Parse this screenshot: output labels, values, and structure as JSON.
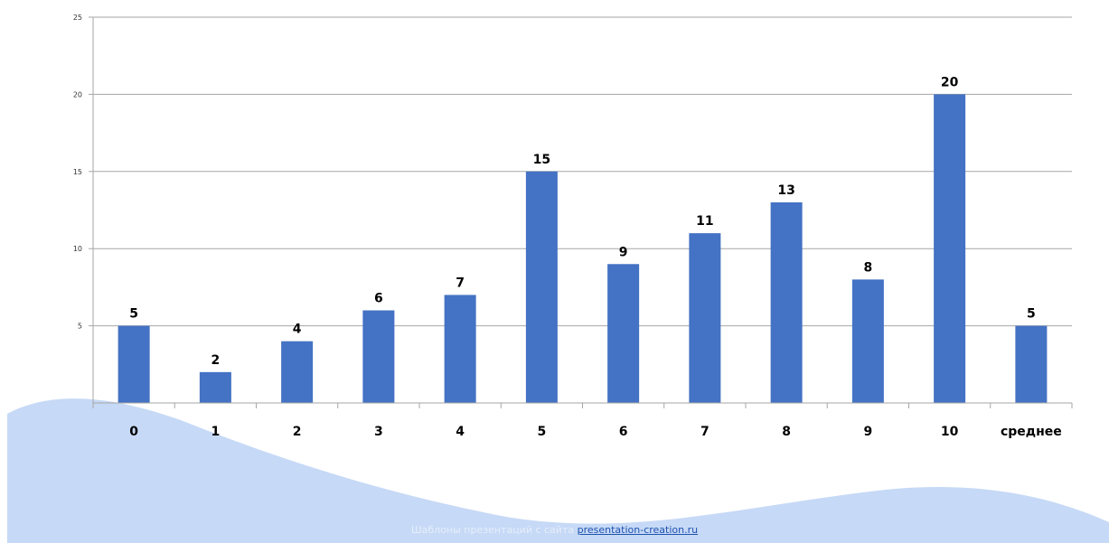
{
  "chart_data": {
    "type": "bar",
    "categories": [
      "0",
      "1",
      "2",
      "3",
      "4",
      "5",
      "6",
      "7",
      "8",
      "9",
      "10",
      "среднее"
    ],
    "values": [
      5,
      2,
      4,
      6,
      7,
      15,
      9,
      11,
      13,
      8,
      20,
      5
    ],
    "ylim": [
      0,
      25
    ],
    "yticks": [
      0,
      5,
      10,
      15,
      20,
      25
    ],
    "grid": true,
    "bar_color": "#4472c4",
    "data_labels": true
  },
  "footer": {
    "prefix": "Шаблоны презентаций с сайта ",
    "link": "presentation-creation.ru"
  },
  "colors": {
    "wave": "#c6d9f6",
    "grid": "#a6a6a6",
    "text": "#000000"
  }
}
